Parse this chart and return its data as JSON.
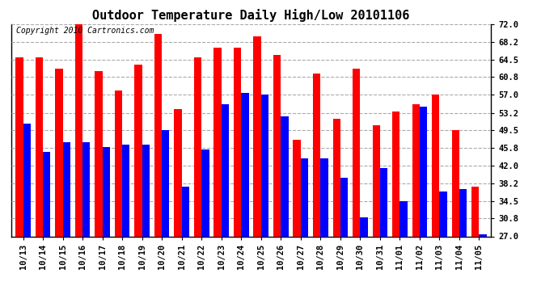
{
  "title": "Outdoor Temperature Daily High/Low 20101106",
  "copyright": "Copyright 2010 Cartronics.com",
  "dates": [
    "10/13",
    "10/14",
    "10/15",
    "10/16",
    "10/17",
    "10/18",
    "10/19",
    "10/20",
    "10/21",
    "10/22",
    "10/23",
    "10/24",
    "10/25",
    "10/26",
    "10/27",
    "10/28",
    "10/29",
    "10/30",
    "10/31",
    "11/01",
    "11/02",
    "11/03",
    "11/04",
    "11/05"
  ],
  "highs": [
    65.0,
    65.0,
    62.5,
    72.5,
    62.0,
    58.0,
    63.5,
    70.0,
    54.0,
    65.0,
    67.0,
    67.0,
    69.5,
    65.5,
    47.5,
    61.5,
    52.0,
    62.5,
    50.5,
    53.5,
    55.0,
    57.0,
    49.5,
    37.5
  ],
  "lows": [
    51.0,
    45.0,
    47.0,
    47.0,
    46.0,
    46.5,
    46.5,
    49.5,
    37.5,
    45.5,
    55.0,
    57.5,
    57.0,
    52.5,
    43.5,
    43.5,
    39.5,
    31.0,
    41.5,
    34.5,
    54.5,
    36.5,
    37.0,
    27.5
  ],
  "high_color": "#ff0000",
  "low_color": "#0000ff",
  "bg_color": "#ffffff",
  "plot_bg_color": "#ffffff",
  "grid_color": "#aaaaaa",
  "yticks": [
    27.0,
    30.8,
    34.5,
    38.2,
    42.0,
    45.8,
    49.5,
    53.2,
    57.0,
    60.8,
    64.5,
    68.2,
    72.0
  ],
  "ymin": 27.0,
  "ymax": 72.0,
  "title_fontsize": 11,
  "copyright_fontsize": 7,
  "tick_fontsize": 7.5,
  "bar_width": 0.38
}
